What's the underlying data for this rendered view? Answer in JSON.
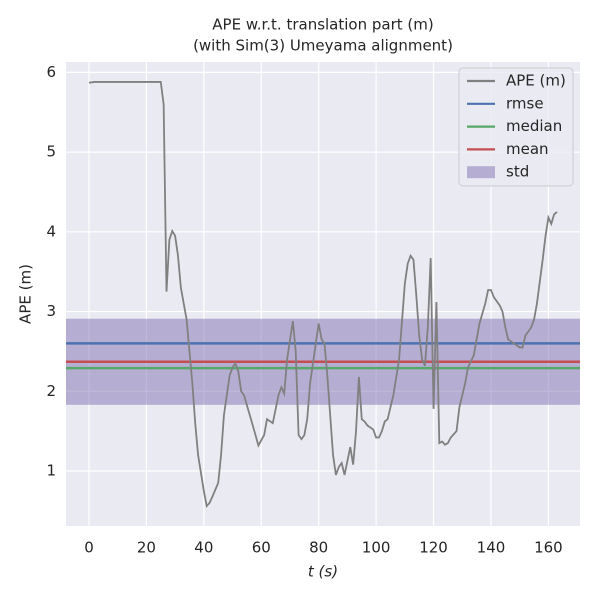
{
  "chart_data": {
    "type": "line",
    "title": [
      "APE w.r.t. translation part (m)",
      "(with Sim(3) Umeyama alignment)"
    ],
    "xlabel": "t (s)",
    "ylabel": "APE (m)",
    "xlim": [
      -8,
      171
    ],
    "ylim": [
      0.31,
      6.13
    ],
    "xticks": [
      0,
      20,
      40,
      60,
      80,
      100,
      120,
      140,
      160
    ],
    "yticks": [
      1,
      2,
      3,
      4,
      5,
      6
    ],
    "grid": true,
    "legend": "upper right",
    "x": [
      0,
      2,
      10,
      20,
      25,
      26,
      27,
      28,
      29,
      30,
      31,
      32,
      34,
      35,
      36,
      37,
      38,
      40,
      41,
      42,
      43,
      45,
      46,
      47,
      49,
      50,
      51,
      52,
      53,
      54,
      56,
      58,
      59,
      61,
      62,
      64,
      66,
      67,
      68,
      69,
      71,
      72,
      73,
      74,
      75,
      76,
      77,
      79,
      80,
      81,
      82,
      83,
      84,
      85,
      86,
      87,
      88,
      89,
      91,
      92,
      93,
      94,
      95,
      96,
      97,
      99,
      100,
      101,
      102,
      103,
      104,
      106,
      108,
      110,
      111,
      112,
      113,
      114,
      115,
      116,
      117,
      118,
      119,
      120,
      121,
      122,
      123,
      124,
      125,
      126,
      128,
      129,
      131,
      132,
      134,
      136,
      138,
      139,
      140,
      141,
      143,
      144,
      145,
      146,
      148,
      150,
      151,
      152,
      154,
      155,
      156,
      158,
      159,
      160,
      161,
      162,
      163
    ],
    "series": [
      {
        "name": "APE (m)",
        "color": "#808080",
        "values": [
          5.87,
          5.88,
          5.88,
          5.88,
          5.88,
          5.6,
          3.25,
          3.9,
          4.01,
          3.95,
          3.7,
          3.3,
          2.9,
          2.5,
          2.1,
          1.6,
          1.2,
          0.75,
          0.56,
          0.6,
          0.68,
          0.85,
          1.2,
          1.7,
          2.2,
          2.3,
          2.35,
          2.25,
          2.0,
          1.95,
          1.7,
          1.45,
          1.32,
          1.45,
          1.65,
          1.6,
          1.95,
          2.05,
          1.97,
          2.4,
          2.88,
          2.5,
          1.45,
          1.4,
          1.45,
          1.65,
          2.1,
          2.6,
          2.85,
          2.65,
          2.6,
          2.2,
          1.7,
          1.2,
          0.95,
          1.05,
          1.1,
          0.95,
          1.3,
          1.08,
          1.5,
          2.18,
          1.65,
          1.62,
          1.57,
          1.52,
          1.42,
          1.42,
          1.5,
          1.62,
          1.65,
          1.95,
          2.4,
          3.35,
          3.6,
          3.7,
          3.65,
          3.2,
          2.7,
          2.4,
          2.32,
          2.8,
          3.67,
          1.78,
          3.12,
          1.35,
          1.37,
          1.33,
          1.35,
          1.42,
          1.5,
          1.8,
          2.1,
          2.3,
          2.45,
          2.85,
          3.1,
          3.27,
          3.27,
          3.18,
          3.08,
          3.0,
          2.8,
          2.65,
          2.6,
          2.55,
          2.55,
          2.7,
          2.8,
          2.9,
          3.1,
          3.65,
          3.95,
          4.18,
          4.1,
          4.22,
          4.25
        ]
      }
    ],
    "lines": [
      {
        "name": "rmse",
        "color": "#4c72b0",
        "value": 2.6
      },
      {
        "name": "median",
        "color": "#55a868",
        "value": 2.29
      },
      {
        "name": "mean",
        "color": "#c44e52",
        "value": 2.37
      }
    ],
    "std": {
      "name": "std",
      "color": "#8172b2",
      "value": 0.54
    }
  }
}
